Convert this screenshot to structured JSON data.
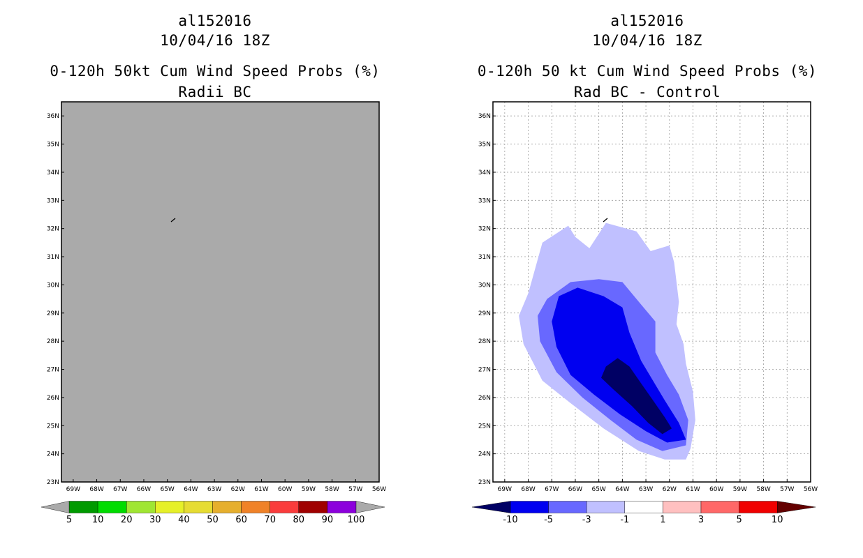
{
  "chart_data": [
    {
      "type": "map",
      "title_lines": [
        "al152016",
        "10/04/16 18Z",
        "0-120h 50kt Cum Wind Speed Probs (%)",
        "Radii BC"
      ],
      "lon_ticks": [
        "69W",
        "68W",
        "67W",
        "66W",
        "65W",
        "64W",
        "63W",
        "62W",
        "61W",
        "60W",
        "59W",
        "58W",
        "57W",
        "56W"
      ],
      "lat_ticks": [
        "23N",
        "24N",
        "25N",
        "26N",
        "27N",
        "28N",
        "29N",
        "30N",
        "31N",
        "32N",
        "33N",
        "34N",
        "35N",
        "36N"
      ],
      "lon_range": [
        -69.5,
        -56
      ],
      "lat_range": [
        23,
        36.5
      ],
      "field": "uniform (no probabilities shown)",
      "background_color": "#aaaaaa",
      "colorbar": {
        "labels": [
          "5",
          "10",
          "20",
          "30",
          "40",
          "50",
          "60",
          "70",
          "80",
          "90",
          "100"
        ],
        "colors": [
          "#009a00",
          "#00dc00",
          "#a0e632",
          "#e6f028",
          "#e6dc32",
          "#e6af2d",
          "#f08228",
          "#fa3c3c",
          "#a00000",
          "#8c00dc"
        ],
        "extend_colors": [
          "#aaaaaa",
          "#aaaaaa"
        ]
      }
    },
    {
      "type": "map",
      "title_lines": [
        "al152016",
        "10/04/16 18Z",
        "0-120h 50 kt Cum Wind Speed Probs (%)",
        "Rad BC - Control"
      ],
      "lon_ticks": [
        "69W",
        "68W",
        "67W",
        "66W",
        "65W",
        "64W",
        "63W",
        "62W",
        "61W",
        "60W",
        "59W",
        "58W",
        "57W",
        "56W"
      ],
      "lat_ticks": [
        "23N",
        "24N",
        "25N",
        "26N",
        "27N",
        "28N",
        "29N",
        "30N",
        "31N",
        "32N",
        "33N",
        "34N",
        "35N",
        "36N"
      ],
      "lon_range": [
        -69.5,
        -56
      ],
      "lat_range": [
        23,
        36.5
      ],
      "grid": true,
      "contours": [
        {
          "level": "-3 to -1",
          "color": "#c0c0ff",
          "points": [
            [
              -68.0,
              29.7
            ],
            [
              -67.4,
              31.5
            ],
            [
              -66.3,
              32.1
            ],
            [
              -66.0,
              31.7
            ],
            [
              -65.4,
              31.3
            ],
            [
              -64.7,
              32.2
            ],
            [
              -63.4,
              31.9
            ],
            [
              -62.8,
              31.2
            ],
            [
              -62.0,
              31.4
            ],
            [
              -61.8,
              30.8
            ],
            [
              -61.6,
              29.4
            ],
            [
              -61.7,
              28.6
            ],
            [
              -61.4,
              27.9
            ],
            [
              -61.3,
              27.2
            ],
            [
              -61.0,
              26.2
            ],
            [
              -60.9,
              25.2
            ],
            [
              -61.1,
              24.2
            ],
            [
              -61.3,
              23.8
            ],
            [
              -62.2,
              23.8
            ],
            [
              -63.3,
              24.1
            ],
            [
              -64.8,
              24.9
            ],
            [
              -66.2,
              25.8
            ],
            [
              -67.4,
              26.6
            ],
            [
              -68.2,
              27.9
            ],
            [
              -68.4,
              28.9
            ]
          ]
        },
        {
          "level": "-5 to -3",
          "color": "#6868ff",
          "points": [
            [
              -67.2,
              29.5
            ],
            [
              -66.2,
              30.1
            ],
            [
              -65.0,
              30.2
            ],
            [
              -64.0,
              30.1
            ],
            [
              -63.2,
              29.3
            ],
            [
              -62.6,
              28.7
            ],
            [
              -62.6,
              27.6
            ],
            [
              -62.1,
              26.8
            ],
            [
              -61.6,
              26.1
            ],
            [
              -61.2,
              25.2
            ],
            [
              -61.3,
              24.3
            ],
            [
              -62.3,
              24.1
            ],
            [
              -63.4,
              24.5
            ],
            [
              -64.5,
              25.2
            ],
            [
              -65.7,
              26.0
            ],
            [
              -66.8,
              26.9
            ],
            [
              -67.5,
              28.0
            ],
            [
              -67.6,
              28.9
            ]
          ]
        },
        {
          "level": "-10 to -5",
          "color": "#0000f0",
          "points": [
            [
              -66.7,
              29.6
            ],
            [
              -65.9,
              29.9
            ],
            [
              -64.8,
              29.6
            ],
            [
              -64.0,
              29.2
            ],
            [
              -63.7,
              28.3
            ],
            [
              -63.2,
              27.3
            ],
            [
              -62.7,
              26.6
            ],
            [
              -62.2,
              25.9
            ],
            [
              -61.6,
              25.1
            ],
            [
              -61.3,
              24.5
            ],
            [
              -62.1,
              24.4
            ],
            [
              -63.0,
              24.8
            ],
            [
              -64.1,
              25.4
            ],
            [
              -65.2,
              26.1
            ],
            [
              -66.2,
              26.8
            ],
            [
              -66.8,
              27.8
            ],
            [
              -67.0,
              28.7
            ]
          ]
        },
        {
          "level": "< -10",
          "color": "#000064",
          "points": [
            [
              -64.7,
              27.1
            ],
            [
              -64.2,
              27.4
            ],
            [
              -63.7,
              27.1
            ],
            [
              -63.2,
              26.5
            ],
            [
              -62.7,
              25.9
            ],
            [
              -62.2,
              25.3
            ],
            [
              -61.9,
              24.9
            ],
            [
              -62.3,
              24.7
            ],
            [
              -62.9,
              25.1
            ],
            [
              -63.6,
              25.7
            ],
            [
              -64.4,
              26.3
            ],
            [
              -64.9,
              26.7
            ]
          ]
        }
      ],
      "colorbar": {
        "labels": [
          "-10",
          "-5",
          "-3",
          "-1",
          "1",
          "3",
          "5",
          "10"
        ],
        "colors": [
          "#0000f0",
          "#6868ff",
          "#c0c0ff",
          "#ffffff",
          "#ffc0c0",
          "#ff6868",
          "#f00000"
        ],
        "extend_colors": [
          "#000064",
          "#640000"
        ]
      }
    }
  ]
}
